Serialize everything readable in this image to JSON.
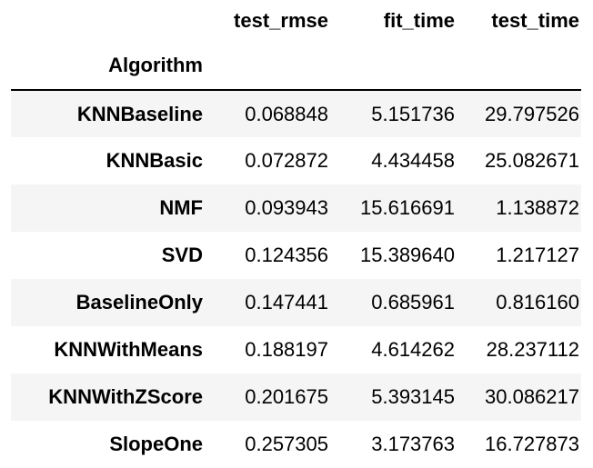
{
  "table": {
    "index_name": "Algorithm",
    "columns": [
      "test_rmse",
      "fit_time",
      "test_time"
    ],
    "rows": [
      {
        "label": "KNNBaseline",
        "values": [
          "0.068848",
          "5.151736",
          "29.797526"
        ]
      },
      {
        "label": "KNNBasic",
        "values": [
          "0.072872",
          "4.434458",
          "25.082671"
        ]
      },
      {
        "label": "NMF",
        "values": [
          "0.093943",
          "15.616691",
          "1.138872"
        ]
      },
      {
        "label": "SVD",
        "values": [
          "0.124356",
          "15.389640",
          "1.217127"
        ]
      },
      {
        "label": "BaselineOnly",
        "values": [
          "0.147441",
          "0.685961",
          "0.816160"
        ]
      },
      {
        "label": "KNNWithMeans",
        "values": [
          "0.188197",
          "4.614262",
          "28.237112"
        ]
      },
      {
        "label": "KNNWithZScore",
        "values": [
          "0.201675",
          "5.393145",
          "30.086217"
        ]
      },
      {
        "label": "SlopeOne",
        "values": [
          "0.257305",
          "3.173763",
          "16.727873"
        ]
      }
    ]
  },
  "colors": {
    "striped_row": "#f5f5f5",
    "plain_row": "#ffffff",
    "header_rule": "#000000"
  }
}
